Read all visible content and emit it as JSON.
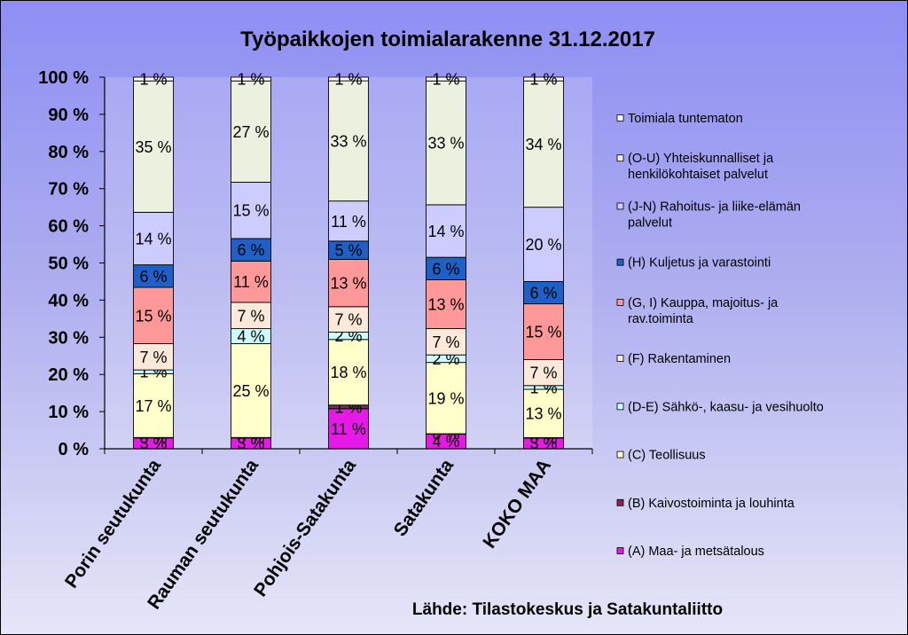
{
  "chart_data": {
    "type": "bar",
    "stacked": true,
    "percent_stacked": true,
    "title": "Työpaikkojen toimialarakenne 31.12.2017",
    "source": "Lähde: Tilastokeskus ja Satakuntaliitto",
    "categories": [
      "Porin seutukunta",
      "Rauman seutukunta",
      "Pohjois-Satakunta",
      "Satakunta",
      "KOKO MAA"
    ],
    "y_ticks": [
      "0 %",
      "10 %",
      "20 %",
      "30 %",
      "40 %",
      "50 %",
      "60 %",
      "70 %",
      "80 %",
      "90 %",
      "100 %"
    ],
    "ylim": [
      0,
      100
    ],
    "legend_position": "right",
    "series": [
      {
        "name": "(A) Maa- ja metsätalous",
        "color": "#e619e6",
        "values": [
          3,
          3,
          11,
          4,
          3
        ],
        "labels": [
          "3 %",
          "3 %",
          "11 %",
          "4 %",
          "3 %"
        ]
      },
      {
        "name": "(B) Kaivostoiminta ja louhinta",
        "color": "#8b2252",
        "values": [
          0,
          0,
          1,
          0,
          0
        ],
        "labels": [
          "0 %",
          "0 %",
          "1 %",
          "0 %",
          "0 %"
        ]
      },
      {
        "name": "(C) Teollisuus",
        "color": "#ffffcc",
        "values": [
          17,
          25,
          18,
          19,
          13
        ],
        "labels": [
          "17 %",
          "25 %",
          "18 %",
          "19 %",
          "13 %"
        ]
      },
      {
        "name": "(D-E) Sähkö-, kaasu- ja vesihuolto",
        "color": "#ccffff",
        "values": [
          1,
          4,
          2,
          2,
          1
        ],
        "labels": [
          "1 %",
          "4 %",
          "2 %",
          "2 %",
          "1 %"
        ]
      },
      {
        "name": "(F) Rakentaminen",
        "color": "#fde9d9",
        "values": [
          7,
          7,
          7,
          7,
          7
        ],
        "labels": [
          "7 %",
          "7 %",
          "7 %",
          "7 %",
          "7 %"
        ]
      },
      {
        "name": "(G, I) Kauppa, majoitus- ja rav.toiminta",
        "color": "#ff9999",
        "values": [
          15,
          11,
          13,
          13,
          15
        ],
        "labels": [
          "15 %",
          "11 %",
          "13 %",
          "13 %",
          "15 %"
        ]
      },
      {
        "name": "(H) Kuljetus ja varastointi",
        "color": "#1f5fc8",
        "values": [
          6,
          6,
          5,
          6,
          6
        ],
        "labels": [
          "6 %",
          "6 %",
          "5 %",
          "6 %",
          "6 %"
        ]
      },
      {
        "name": "(J-N) Rahoitus- ja liike-elämän palvelut",
        "color": "#ccccff",
        "values": [
          14,
          15,
          11,
          14,
          20
        ],
        "labels": [
          "14 %",
          "15 %",
          "11 %",
          "14 %",
          "20 %"
        ]
      },
      {
        "name": "(O-U) Yhteiskunnalliset ja henkilökohtaiset palvelut",
        "color": "#ebf1de",
        "values": [
          35,
          27,
          33,
          33,
          34
        ],
        "labels": [
          "35 %",
          "27 %",
          "33 %",
          "33 %",
          "34 %"
        ]
      },
      {
        "name": "Toimiala tuntematon",
        "color": "#ffffff",
        "values": [
          1,
          1,
          1,
          1,
          1
        ],
        "labels": [
          "1 %",
          "1 %",
          "1 %",
          "1 %",
          "1 %"
        ]
      }
    ]
  }
}
